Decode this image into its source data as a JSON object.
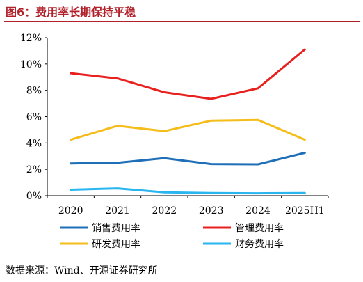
{
  "header": {
    "title": "图6：费用率长期保持平稳"
  },
  "source": "数据来源：Wind、开源证券研究所",
  "chart_data": {
    "type": "line",
    "title": "",
    "xlabel": "",
    "ylabel": "",
    "categories": [
      "2020",
      "2021",
      "2022",
      "2023",
      "2024",
      "2025H1"
    ],
    "y_ticks": [
      "0%",
      "2%",
      "4%",
      "6%",
      "8%",
      "10%",
      "12%"
    ],
    "ylim": [
      0,
      12
    ],
    "grid": false,
    "legend_placement": "bottom",
    "series": [
      {
        "name": "销售费用率",
        "color": "#1f6fb8",
        "values": [
          2.45,
          2.5,
          2.85,
          2.4,
          2.38,
          3.25
        ]
      },
      {
        "name": "管理费用率",
        "color": "#e8211f",
        "values": [
          9.3,
          8.9,
          7.85,
          7.35,
          8.15,
          11.1
        ]
      },
      {
        "name": "研发费用率",
        "color": "#f5bd1b",
        "values": [
          4.25,
          5.3,
          4.9,
          5.7,
          5.75,
          4.25
        ]
      },
      {
        "name": "财务费用率",
        "color": "#29b6f0",
        "values": [
          0.45,
          0.55,
          0.25,
          0.2,
          0.18,
          0.2
        ]
      }
    ]
  }
}
